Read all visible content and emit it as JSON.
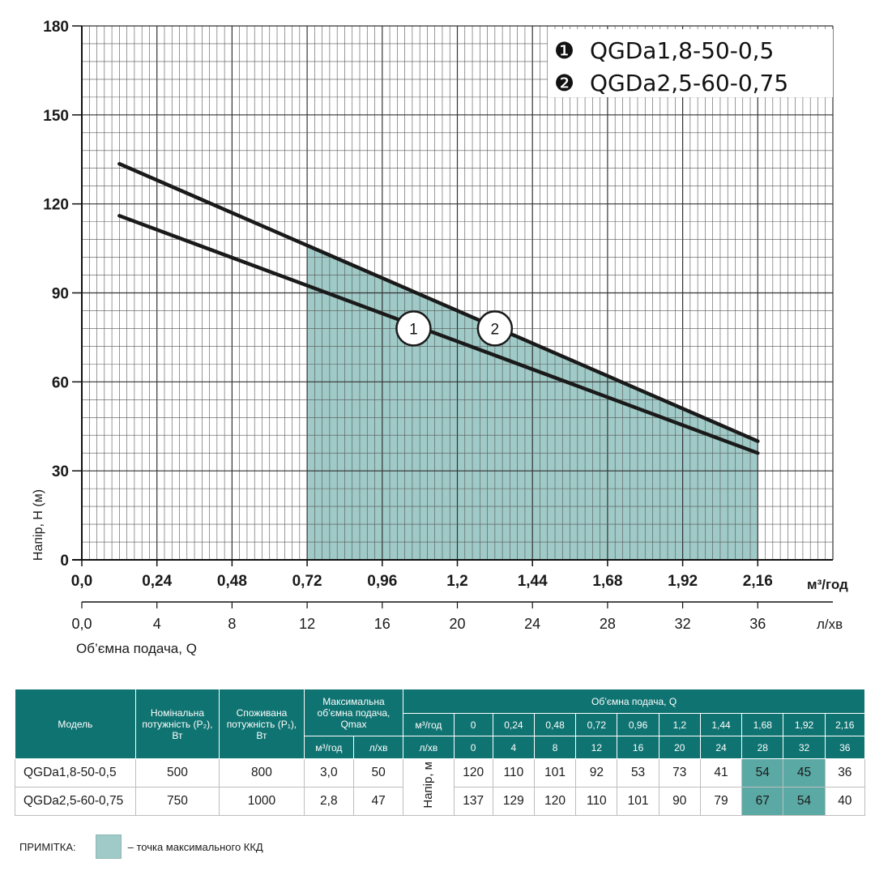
{
  "chart_data": {
    "type": "line",
    "ylabel": "Напір, Н (м)",
    "xlabel": "Об’ємна подача, Q",
    "x_unit": "м³/год",
    "x2_unit": "л/хв",
    "ylim": [
      0,
      180
    ],
    "xlim": [
      0,
      2.4
    ],
    "y_ticks": [
      "0",
      "30",
      "60",
      "90",
      "120",
      "150",
      "180"
    ],
    "y_tick_values": [
      0,
      30,
      60,
      90,
      120,
      150,
      180
    ],
    "x_ticks": [
      "0,0",
      "0,24",
      "0,48",
      "0,72",
      "0,96",
      "1,2",
      "1,44",
      "1,68",
      "1,92",
      "2,16"
    ],
    "x_tick_values": [
      0,
      0.24,
      0.48,
      0.72,
      0.96,
      1.2,
      1.44,
      1.68,
      1.92,
      2.16
    ],
    "x2_ticks": [
      "0,0",
      "4",
      "8",
      "12",
      "16",
      "20",
      "24",
      "28",
      "32",
      "36"
    ],
    "shaded_region": {
      "x_from": 0.72,
      "x_to": 2.16,
      "color": "#9fcac7"
    },
    "series": [
      {
        "name": "1",
        "label": "QGDa1,8-50-0,5",
        "x": [
          0.12,
          2.16
        ],
        "y": [
          116,
          36
        ],
        "label_at": [
          1.06,
          78
        ]
      },
      {
        "name": "2",
        "label": "QGDa2,5-60-0,75",
        "x": [
          0.12,
          2.16
        ],
        "y": [
          133.5,
          40
        ],
        "label_at": [
          1.32,
          78
        ]
      }
    ],
    "legend": {
      "position": "top-right",
      "items": [
        {
          "marker": "❶",
          "text": "QGDa1,8-50-0,5"
        },
        {
          "marker": "❷",
          "text": "QGDa2,5-60-0,75"
        }
      ]
    }
  },
  "table": {
    "headers": {
      "model": "Модель",
      "p2": "Номінальна потужність (P₂), Вт",
      "p1": "Споживана потужність (P₁), Вт",
      "qmax": "Максимальна об’ємна подача, Qmax",
      "qmax_unit1": "м³/год",
      "qmax_unit2": "л/хв",
      "flow": "Об’ємна подача, Q",
      "flow_unit1": "м³/год",
      "flow_unit2": "л/хв",
      "flow_values1": [
        "0",
        "0,24",
        "0,48",
        "0,72",
        "0,96",
        "1,2",
        "1,44",
        "1,68",
        "1,92",
        "2,16"
      ],
      "flow_values2": [
        "0",
        "4",
        "8",
        "12",
        "16",
        "20",
        "24",
        "28",
        "32",
        "36"
      ],
      "head_label": "Напір, м"
    },
    "rows": [
      {
        "model": "QGDa1,8-50-0,5",
        "p2": "500",
        "p1": "800",
        "qmax_m3": "3,0",
        "qmax_l": "50",
        "heads": [
          "120",
          "110",
          "101",
          "92",
          "53",
          "73",
          "41",
          "54",
          "45",
          "36"
        ]
      },
      {
        "model": "QGDa2,5-60-0,75",
        "p2": "750",
        "p1": "1000",
        "qmax_m3": "2,8",
        "qmax_l": "47",
        "heads": [
          "137",
          "129",
          "120",
          "110",
          "101",
          "90",
          "79",
          "67",
          "54",
          "40"
        ]
      }
    ]
  },
  "note": {
    "label": "ПРИМІТКА:",
    "text": "– точка максимального ККД"
  },
  "colors": {
    "header": "#0f7371",
    "highlight": "#5aa9a4",
    "shade": "#9fcac7"
  }
}
